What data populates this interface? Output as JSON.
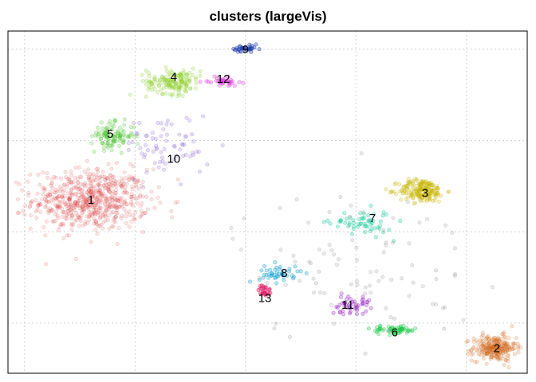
{
  "chart_data": {
    "type": "scatter",
    "title": "clusters (largeVis)",
    "xlabel": "",
    "ylabel": "",
    "xlim": [
      -0.3,
      9.1
    ],
    "ylim": [
      -0.1,
      7.4
    ],
    "grid": true,
    "legend": "none",
    "series": [
      {
        "label": "1",
        "color": "#d62728",
        "alpha": 0.12,
        "center": [
          1.2,
          3.7
        ],
        "spread": [
          0.75,
          0.48
        ],
        "n": 650
      },
      {
        "label": "2",
        "color": "#d2691e",
        "alpha": 0.18,
        "center": [
          8.5,
          0.45
        ],
        "spread": [
          0.28,
          0.2
        ],
        "n": 260
      },
      {
        "label": "3",
        "color": "#c8b400",
        "alpha": 0.22,
        "center": [
          7.2,
          3.9
        ],
        "spread": [
          0.3,
          0.18
        ],
        "n": 200
      },
      {
        "label": "4",
        "color": "#8ccf2a",
        "alpha": 0.22,
        "center": [
          2.7,
          6.3
        ],
        "spread": [
          0.35,
          0.2
        ],
        "n": 160
      },
      {
        "label": "5",
        "color": "#4dc430",
        "alpha": 0.22,
        "center": [
          1.6,
          5.1
        ],
        "spread": [
          0.28,
          0.2
        ],
        "n": 110
      },
      {
        "label": "6",
        "color": "#22c94b",
        "alpha": 0.3,
        "center": [
          6.7,
          0.85
        ],
        "spread": [
          0.3,
          0.07
        ],
        "n": 60
      },
      {
        "label": "7",
        "color": "#20c9a0",
        "alpha": 0.3,
        "center": [
          6.1,
          3.2
        ],
        "spread": [
          0.4,
          0.2
        ],
        "n": 60
      },
      {
        "label": "8",
        "color": "#10a0d0",
        "alpha": 0.3,
        "center": [
          4.6,
          2.1
        ],
        "spread": [
          0.25,
          0.15
        ],
        "n": 45
      },
      {
        "label": "9",
        "color": "#2040b0",
        "alpha": 0.35,
        "center": [
          4.0,
          7.0
        ],
        "spread": [
          0.18,
          0.06
        ],
        "n": 35
      },
      {
        "label": "10",
        "color": "#8060d0",
        "alpha": 0.2,
        "center": [
          2.6,
          4.9
        ],
        "spread": [
          0.55,
          0.5
        ],
        "n": 70
      },
      {
        "label": "11",
        "color": "#9b30c8",
        "alpha": 0.3,
        "center": [
          5.9,
          1.4
        ],
        "spread": [
          0.25,
          0.15
        ],
        "n": 50
      },
      {
        "label": "12",
        "color": "#e040e0",
        "alpha": 0.3,
        "center": [
          3.6,
          6.3
        ],
        "spread": [
          0.2,
          0.06
        ],
        "n": 40
      },
      {
        "label": "13",
        "color": "#e0206a",
        "alpha": 0.4,
        "center": [
          4.35,
          1.7
        ],
        "spread": [
          0.08,
          0.1
        ],
        "n": 25
      },
      {
        "label": "",
        "color": "#9a9a9a",
        "alpha": 0.22,
        "center": [
          6.0,
          2.3
        ],
        "spread": [
          1.6,
          1.2
        ],
        "n": 90
      }
    ],
    "labels": [
      {
        "text": "1",
        "x": 1.2,
        "y": 3.7
      },
      {
        "text": "2",
        "x": 8.55,
        "y": 0.45
      },
      {
        "text": "3",
        "x": 7.25,
        "y": 3.85
      },
      {
        "text": "4",
        "x": 2.7,
        "y": 6.4
      },
      {
        "text": "5",
        "x": 1.55,
        "y": 5.15
      },
      {
        "text": "6",
        "x": 6.7,
        "y": 0.8
      },
      {
        "text": "7",
        "x": 6.3,
        "y": 3.3
      },
      {
        "text": "8",
        "x": 4.7,
        "y": 2.1
      },
      {
        "text": "9",
        "x": 4.0,
        "y": 7.0
      },
      {
        "text": "10",
        "x": 2.7,
        "y": 4.6
      },
      {
        "text": "11",
        "x": 5.85,
        "y": 1.4
      },
      {
        "text": "12",
        "x": 3.6,
        "y": 6.35
      },
      {
        "text": "13",
        "x": 4.35,
        "y": 1.55
      }
    ]
  }
}
